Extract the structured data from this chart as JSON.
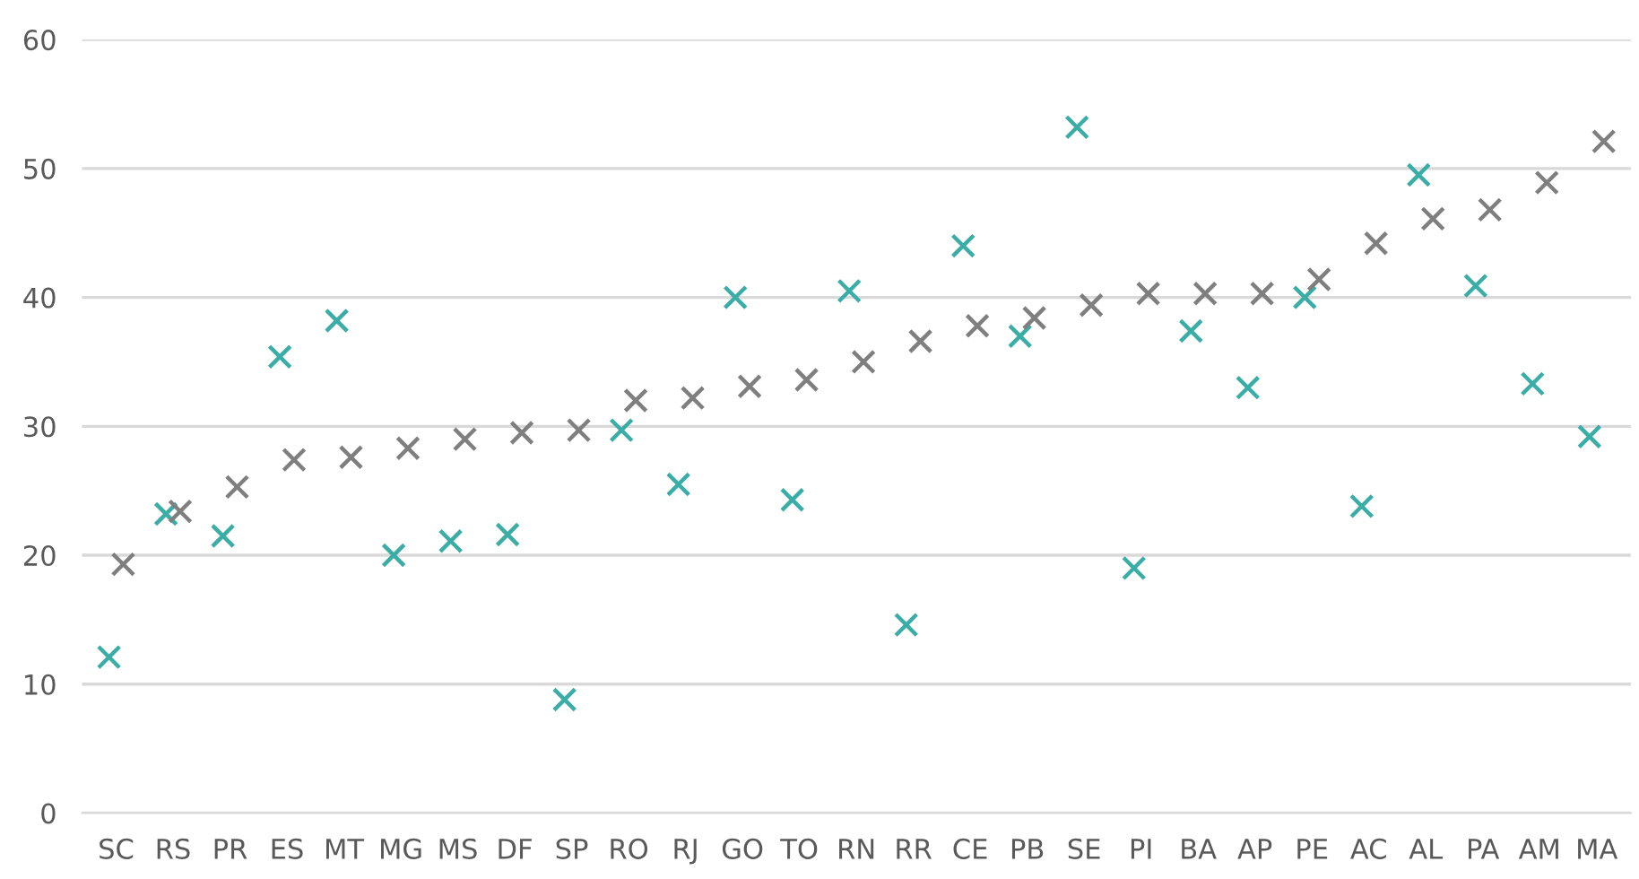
{
  "chart_data": {
    "type": "scatter",
    "categories": [
      "SC",
      "RS",
      "PR",
      "ES",
      "MT",
      "MG",
      "MS",
      "DF",
      "SP",
      "RO",
      "RJ",
      "GO",
      "TO",
      "RN",
      "RR",
      "CE",
      "PB",
      "SE",
      "PI",
      "BA",
      "AP",
      "PE",
      "AC",
      "AL",
      "PA",
      "AM",
      "MA"
    ],
    "series": [
      {
        "color": "#3aaea6",
        "values": [
          12.1,
          23.2,
          21.5,
          35.4,
          38.2,
          20.0,
          21.1,
          21.6,
          8.8,
          29.7,
          25.5,
          40.0,
          24.3,
          40.5,
          14.6,
          44.0,
          37.0,
          53.2,
          19.0,
          37.4,
          33.0,
          40.0,
          23.8,
          49.5,
          40.9,
          33.3,
          29.2
        ]
      },
      {
        "color": "#7f7f7f",
        "values": [
          19.3,
          23.4,
          25.3,
          27.4,
          27.6,
          28.3,
          29.0,
          29.5,
          29.7,
          32.0,
          32.2,
          33.1,
          33.6,
          35.0,
          36.6,
          37.8,
          38.4,
          39.4,
          40.3,
          40.3,
          40.3,
          41.4,
          44.2,
          46.1,
          46.8,
          48.9,
          52.1
        ]
      }
    ],
    "ylim": [
      0,
      60
    ],
    "yticks": [
      0,
      10,
      20,
      30,
      40,
      50,
      60
    ],
    "grid": "y",
    "marker": "cross",
    "legend": false
  }
}
